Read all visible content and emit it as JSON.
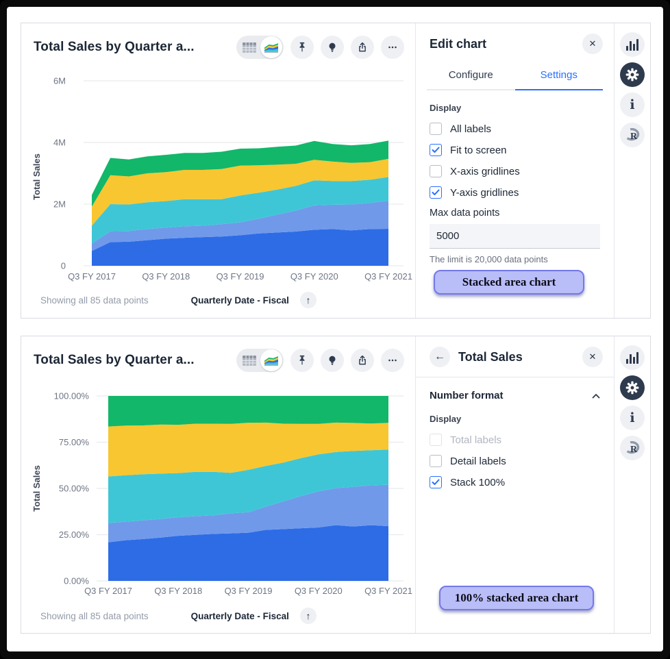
{
  "top_panel": {
    "title": "Total Sales by Quarter a...",
    "toolbar": {
      "view_toggle": [
        "table-view",
        "area-chart-view"
      ],
      "icons": [
        "pin-icon",
        "lightbulb-icon",
        "share-icon",
        "ellipsis-icon"
      ]
    },
    "footer": {
      "showing": "Showing all 85 data points",
      "x_field": "Quarterly Date - Fiscal"
    },
    "edit_panel": {
      "title": "Edit chart",
      "close_label": "✕",
      "tabs": [
        {
          "label": "Configure",
          "active": false
        },
        {
          "label": "Settings",
          "active": true
        }
      ],
      "display_label": "Display",
      "checkboxes": [
        {
          "label": "All labels",
          "checked": false
        },
        {
          "label": "Fit to screen",
          "checked": true
        },
        {
          "label": "X-axis gridlines",
          "checked": false
        },
        {
          "label": "Y-axis gridlines",
          "checked": true
        }
      ],
      "max_points_label": "Max data points",
      "max_points_value": "5000",
      "helper": "The limit is 20,000 data points",
      "annotation": "Stacked area chart"
    }
  },
  "bottom_panel": {
    "title": "Total Sales by Quarter a...",
    "footer": {
      "showing": "Showing all 85 data points",
      "x_field": "Quarterly Date - Fiscal"
    },
    "detail_panel": {
      "title": "Total Sales",
      "back_label": "←",
      "close_label": "✕",
      "section_title": "Number format",
      "display_label": "Display",
      "checkboxes": [
        {
          "label": "Total labels",
          "checked": false,
          "disabled": true
        },
        {
          "label": "Detail labels",
          "checked": false
        },
        {
          "label": "Stack 100%",
          "checked": true
        }
      ],
      "annotation": "100% stacked area chart"
    }
  },
  "colors": {
    "accent_blue": "#2970ff",
    "series": {
      "blue": "#2e6ce6",
      "periwinkle": "#7099ea",
      "teal": "#3fc6d6",
      "yellow": "#f8c630",
      "green": "#12b76a"
    },
    "dark_icon": "#2e3a4d",
    "annotation_fill": "#b9bdf8",
    "annotation_border": "#7478ea"
  },
  "chart_data": [
    {
      "type": "area",
      "stacking": "normal",
      "title": "Total Sales by Quarter a...",
      "ylabel": "Total Sales",
      "xlabel": "Quarterly Date - Fiscal",
      "note": "Showing all 85 data points",
      "n_points": 17,
      "x_ticks": [
        "Q3 FY 2017",
        "Q3 FY 2018",
        "Q3 FY 2019",
        "Q3 FY 2020",
        "Q3 FY 2021"
      ],
      "x_tick_indices": [
        0,
        4,
        8,
        12,
        16
      ],
      "y_ticks": [
        "0",
        "2M",
        "4M",
        "6M"
      ],
      "ylim": [
        0,
        6
      ],
      "unit": "millions",
      "grid": "y-only",
      "legend": "none",
      "series": [
        {
          "name": "blue",
          "color": "#2e6ce6",
          "values": [
            0.48,
            0.77,
            0.78,
            0.83,
            0.88,
            0.91,
            0.93,
            0.95,
            0.99,
            1.05,
            1.08,
            1.11,
            1.17,
            1.19,
            1.15,
            1.19,
            1.2
          ]
        },
        {
          "name": "periwinkle",
          "color": "#7099ea",
          "values": [
            0.24,
            0.35,
            0.35,
            0.36,
            0.36,
            0.37,
            0.37,
            0.4,
            0.42,
            0.48,
            0.58,
            0.68,
            0.79,
            0.79,
            0.84,
            0.85,
            0.91
          ]
        },
        {
          "name": "teal",
          "color": "#3fc6d6",
          "values": [
            0.58,
            0.88,
            0.86,
            0.87,
            0.86,
            0.88,
            0.86,
            0.81,
            0.87,
            0.84,
            0.81,
            0.8,
            0.81,
            0.77,
            0.76,
            0.75,
            0.77
          ]
        },
        {
          "name": "yellow",
          "color": "#f8c630",
          "values": [
            0.62,
            0.94,
            0.91,
            0.94,
            0.94,
            0.95,
            0.95,
            0.98,
            0.97,
            0.89,
            0.81,
            0.72,
            0.67,
            0.63,
            0.59,
            0.57,
            0.59
          ]
        },
        {
          "name": "green",
          "color": "#12b76a",
          "values": [
            0.38,
            0.56,
            0.55,
            0.55,
            0.56,
            0.55,
            0.55,
            0.56,
            0.55,
            0.55,
            0.58,
            0.59,
            0.61,
            0.57,
            0.57,
            0.59,
            0.59
          ]
        }
      ]
    },
    {
      "type": "area",
      "stacking": "percent",
      "title": "Total Sales by Quarter a...",
      "ylabel": "Total Sales",
      "xlabel": "Quarterly Date - Fiscal",
      "note": "Showing all 85 data points",
      "n_points": 17,
      "x_ticks": [
        "Q3 FY 2017",
        "Q3 FY 2018",
        "Q3 FY 2019",
        "Q3 FY 2020",
        "Q3 FY 2021"
      ],
      "x_tick_indices": [
        0,
        4,
        8,
        12,
        16
      ],
      "y_ticks": [
        "0.00%",
        "25.00%",
        "50.00%",
        "75.00%",
        "100.00%"
      ],
      "ylim": [
        0,
        100
      ],
      "unit": "percent",
      "grid": "y-only",
      "legend": "none",
      "series": [
        {
          "name": "blue",
          "color": "#2e6ce6",
          "values": [
            20.9,
            22.0,
            22.6,
            23.4,
            24.4,
            24.9,
            25.4,
            25.7,
            26.1,
            27.6,
            28.0,
            28.5,
            28.9,
            30.1,
            29.4,
            30.1,
            29.6
          ]
        },
        {
          "name": "periwinkle",
          "color": "#7099ea",
          "values": [
            10.4,
            10.0,
            10.1,
            10.1,
            10.0,
            10.1,
            10.1,
            10.8,
            11.1,
            12.6,
            15.0,
            17.4,
            19.5,
            20.0,
            21.5,
            21.5,
            22.4
          ]
        },
        {
          "name": "teal",
          "color": "#3fc6d6",
          "values": [
            25.2,
            25.1,
            24.9,
            24.5,
            23.9,
            24.0,
            23.5,
            21.9,
            22.9,
            22.0,
            21.0,
            20.5,
            20.0,
            19.5,
            19.4,
            19.0,
            19.0
          ]
        },
        {
          "name": "yellow",
          "color": "#f8c630",
          "values": [
            27.0,
            26.9,
            26.4,
            26.5,
            26.1,
            26.0,
            26.0,
            26.5,
            25.5,
            23.4,
            21.0,
            18.5,
            16.5,
            15.9,
            15.1,
            14.4,
            14.5
          ]
        },
        {
          "name": "green",
          "color": "#12b76a",
          "values": [
            16.5,
            16.0,
            15.9,
            15.5,
            15.6,
            15.0,
            15.0,
            15.1,
            14.5,
            14.4,
            15.0,
            15.1,
            15.1,
            14.4,
            14.6,
            14.9,
            14.5
          ]
        }
      ]
    }
  ]
}
